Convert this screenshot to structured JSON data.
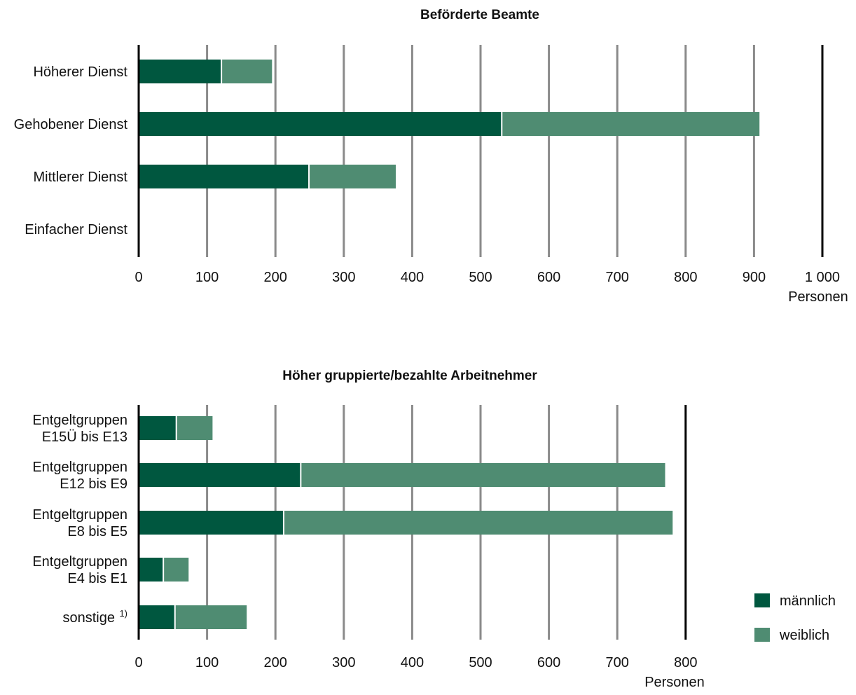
{
  "chart_data": [
    {
      "type": "bar",
      "orientation": "horizontal",
      "stacked": true,
      "title": "Beförderte Beamte",
      "xlabel": "Personen",
      "xlim": [
        0,
        1000
      ],
      "xticks": [
        0,
        100,
        200,
        300,
        400,
        500,
        600,
        700,
        800,
        900,
        1000
      ],
      "xtick_labels": [
        "0",
        "100",
        "200",
        "300",
        "400",
        "500",
        "600",
        "700",
        "800",
        "900",
        "1 000"
      ],
      "grid": true,
      "categories": [
        [
          "Höherer Dienst"
        ],
        [
          "Gehobener Dienst"
        ],
        [
          "Mittlerer Dienst"
        ],
        [
          "Einfacher Dienst"
        ]
      ],
      "series": [
        {
          "name": "männlich",
          "values": [
            120,
            530,
            248,
            0
          ]
        },
        {
          "name": "weiblich",
          "values": [
            75,
            378,
            128,
            0
          ]
        }
      ]
    },
    {
      "type": "bar",
      "orientation": "horizontal",
      "stacked": true,
      "title": "Höher gruppierte/bezahlte Arbeitnehmer",
      "xlabel": "Personen",
      "xlim": [
        0,
        800
      ],
      "xticks": [
        0,
        100,
        200,
        300,
        400,
        500,
        600,
        700,
        800
      ],
      "xtick_labels": [
        "0",
        "100",
        "200",
        "300",
        "400",
        "500",
        "600",
        "700",
        "800"
      ],
      "grid": true,
      "categories": [
        [
          "Entgeltgruppen",
          "E15Ü bis E13"
        ],
        [
          "Entgeltgruppen",
          "E12 bis E9"
        ],
        [
          "Entgeltgruppen",
          "E8 bis E5"
        ],
        [
          "Entgeltgruppen",
          "E4 bis E1"
        ],
        [
          "sonstige"
        ]
      ],
      "category_notes": [
        "",
        "",
        "",
        "",
        "1)"
      ],
      "series": [
        {
          "name": "männlich",
          "values": [
            54,
            236,
            211,
            35,
            52
          ]
        },
        {
          "name": "weiblich",
          "values": [
            54,
            534,
            570,
            38,
            106
          ]
        }
      ]
    }
  ],
  "legend": {
    "placement": "bottom-right",
    "items": [
      {
        "label": "männlich",
        "color": "#00573f"
      },
      {
        "label": "weiblich",
        "color": "#4f8c72"
      }
    ]
  },
  "colors": {
    "männlich": "#00573f",
    "weiblich": "#4f8c72",
    "grid": "#8a8a8a",
    "axis": "#000000"
  }
}
